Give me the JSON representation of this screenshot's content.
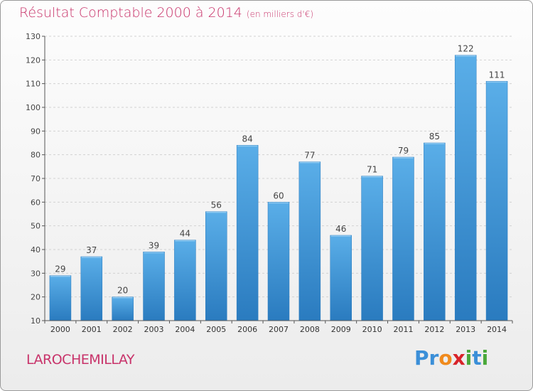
{
  "header": {
    "title": "Résultat Comptable 2000 à 2014",
    "subtitle": "(en milliers d'€)"
  },
  "footer": {
    "commune": "LAROCHEMILLAY",
    "logo_letters": [
      "P",
      "r",
      "o",
      "x",
      "i",
      "t",
      "i"
    ],
    "logo_colors": [
      "#3b8fd8",
      "#3b8fd8",
      "#f08a1c",
      "#d8232a",
      "#4aa83a",
      "#3b8fd8",
      "#4aa83a"
    ]
  },
  "chart_data": {
    "type": "bar",
    "categories": [
      "2000",
      "2001",
      "2002",
      "2003",
      "2004",
      "2005",
      "2006",
      "2007",
      "2008",
      "2009",
      "2010",
      "2011",
      "2012",
      "2013",
      "2014"
    ],
    "values": [
      29,
      37,
      20,
      39,
      44,
      56,
      84,
      60,
      77,
      46,
      71,
      79,
      85,
      122,
      111
    ],
    "data_labels": [
      "29",
      "37",
      "20",
      "39",
      "44",
      "56",
      "84",
      "60",
      "77",
      "46",
      "71",
      "79",
      "85",
      "122",
      "111"
    ],
    "y_ticks": [
      "10",
      "20",
      "30",
      "40",
      "50",
      "60",
      "70",
      "80",
      "90",
      "100",
      "110",
      "120",
      "130"
    ],
    "ylim": [
      10,
      130
    ],
    "grid": true,
    "bar_color_top": "#5aaee8",
    "bar_color_bottom": "#2a7bbf"
  }
}
